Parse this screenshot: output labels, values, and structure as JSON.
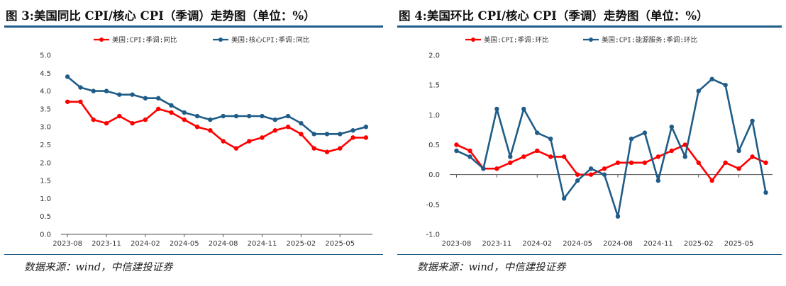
{
  "chart_data": [
    {
      "type": "line",
      "title": "图 3:美国同比 CPI/核心 CPI（季调）走势图（单位：%）",
      "source": "数据来源：wind，中信建投证券",
      "ylim": [
        0,
        5
      ],
      "yticks": [
        "5.0",
        "4.5",
        "4.0",
        "3.5",
        "3.0",
        "2.5",
        "2.0",
        "1.5",
        "1.0",
        "0.5",
        "0.0"
      ],
      "xtick_labels": [
        "2023-08",
        "2023-11",
        "2024-02",
        "2024-05",
        "2024-08",
        "2024-11",
        "2025-02",
        "2025-05"
      ],
      "legend_position": "top",
      "grid": false,
      "x": [
        "2023-08",
        "2023-09",
        "2023-10",
        "2023-11",
        "2023-12",
        "2024-01",
        "2024-02",
        "2024-03",
        "2024-04",
        "2024-05",
        "2024-06",
        "2024-07",
        "2024-08",
        "2024-09",
        "2024-10",
        "2024-11",
        "2024-12",
        "2025-01",
        "2025-02",
        "2025-03",
        "2025-04",
        "2025-05",
        "2025-06",
        "2025-07"
      ],
      "series": [
        {
          "name": "美国:CPI:季调:同比",
          "color": "#ff0000",
          "values": [
            3.7,
            3.7,
            3.2,
            3.1,
            3.3,
            3.1,
            3.2,
            3.5,
            3.4,
            3.2,
            3.0,
            2.9,
            2.6,
            2.4,
            2.6,
            2.7,
            2.9,
            3.0,
            2.8,
            2.4,
            2.3,
            2.4,
            2.7,
            2.7
          ]
        },
        {
          "name": "美国:核心CPI:季调:同比",
          "color": "#1f5c87",
          "values": [
            4.4,
            4.1,
            4.0,
            4.0,
            3.9,
            3.9,
            3.8,
            3.8,
            3.6,
            3.4,
            3.3,
            3.2,
            3.3,
            3.3,
            3.3,
            3.3,
            3.2,
            3.3,
            3.1,
            2.8,
            2.8,
            2.8,
            2.9,
            3.0
          ]
        }
      ]
    },
    {
      "type": "line",
      "title": "图 4:美国环比 CPI/核心 CPI（季调）走势图（单位：%）",
      "source": "数据来源：wind，中信建投证券",
      "ylim": [
        -1,
        2
      ],
      "yticks": [
        "2.0",
        "1.5",
        "1.0",
        "0.5",
        "0.0",
        "-0.5",
        "-1.0"
      ],
      "xtick_labels": [
        "2023-08",
        "2023-11",
        "2024-02",
        "2024-05",
        "2024-08",
        "2024-11",
        "2025-02",
        "2025-05"
      ],
      "legend_position": "top",
      "grid": false,
      "x": [
        "2023-08",
        "2023-09",
        "2023-10",
        "2023-11",
        "2023-12",
        "2024-01",
        "2024-02",
        "2024-03",
        "2024-04",
        "2024-05",
        "2024-06",
        "2024-07",
        "2024-08",
        "2024-09",
        "2024-10",
        "2024-11",
        "2024-12",
        "2025-01",
        "2025-02",
        "2025-03",
        "2025-04",
        "2025-05",
        "2025-06",
        "2025-07"
      ],
      "series": [
        {
          "name": "美国:CPI:季调:环比",
          "color": "#ff0000",
          "values": [
            0.5,
            0.4,
            0.1,
            0.1,
            0.2,
            0.3,
            0.4,
            0.3,
            0.3,
            0.0,
            0.0,
            0.1,
            0.2,
            0.2,
            0.2,
            0.3,
            0.4,
            0.5,
            0.2,
            -0.1,
            0.2,
            0.1,
            0.3,
            0.2
          ]
        },
        {
          "name": "美国:CPI:能源服务:季调:环比",
          "color": "#1f5c87",
          "values": [
            0.4,
            0.3,
            0.1,
            1.1,
            0.3,
            1.1,
            0.7,
            0.6,
            -0.4,
            -0.1,
            0.1,
            0.0,
            -0.7,
            0.6,
            0.7,
            -0.1,
            0.8,
            0.3,
            1.4,
            1.6,
            1.5,
            0.4,
            0.9,
            -0.3
          ]
        }
      ]
    }
  ]
}
